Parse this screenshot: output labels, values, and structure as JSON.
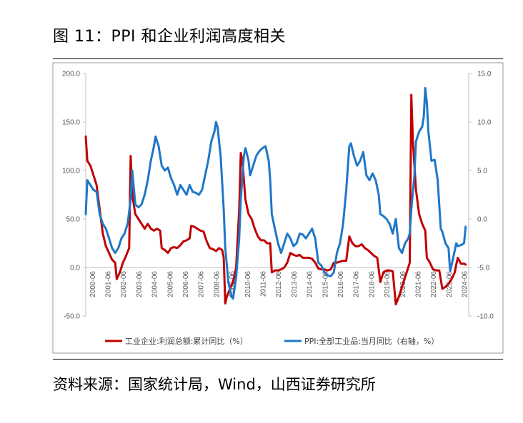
{
  "title": "图 11：PPI 和企业利润高度相关",
  "source": "资料来源：国家统计局，Wind，山西证券研究所",
  "chart_data": {
    "type": "line",
    "left_axis": {
      "min": -50,
      "max": 200,
      "ticks": [
        "200.0",
        "150.0",
        "100.0",
        "50.0",
        "0.0",
        "-50.0"
      ],
      "tick_values": [
        200,
        150,
        100,
        50,
        0,
        -50
      ]
    },
    "right_axis": {
      "min": -10,
      "max": 15,
      "ticks": [
        "15.0",
        "10.0",
        "5.0",
        "0.0",
        "-5.0",
        "-10.0"
      ],
      "tick_values": [
        15,
        10,
        5,
        0,
        -5,
        -10
      ]
    },
    "x_ticks": [
      "2000-06",
      "2001-06",
      "2002-06",
      "2003-06",
      "2004-06",
      "2005-06",
      "2006-06",
      "2007-06",
      "2008-06",
      "2009-06",
      "2010-06",
      "2011-06",
      "2012-06",
      "2013-06",
      "2014-06",
      "2015-06",
      "2016-06",
      "2017-06",
      "2018-06",
      "2019-06",
      "2020-06",
      "2021-06",
      "2022-06",
      "2023-06",
      "2024-06"
    ],
    "x_start": 2000.0,
    "x_end": 2024.7,
    "legend_position": "bottom",
    "series": [
      {
        "name": "工业企业:利润总额:累计同比（%）",
        "axis": "left",
        "color": "#C00000",
        "points": [
          [
            2000.0,
            135
          ],
          [
            2000.1,
            110
          ],
          [
            2000.3,
            105
          ],
          [
            2000.5,
            95
          ],
          [
            2000.7,
            85
          ],
          [
            2000.9,
            60
          ],
          [
            2001.1,
            35
          ],
          [
            2001.3,
            22
          ],
          [
            2001.5,
            15
          ],
          [
            2001.7,
            8
          ],
          [
            2001.9,
            5
          ],
          [
            2002.0,
            -12
          ],
          [
            2002.2,
            -5
          ],
          [
            2002.4,
            5
          ],
          [
            2002.6,
            12
          ],
          [
            2002.8,
            20
          ],
          [
            2002.9,
            115
          ],
          [
            2003.0,
            75
          ],
          [
            2003.2,
            55
          ],
          [
            2003.4,
            50
          ],
          [
            2003.6,
            45
          ],
          [
            2003.8,
            40
          ],
          [
            2004.0,
            45
          ],
          [
            2004.2,
            40
          ],
          [
            2004.4,
            38
          ],
          [
            2004.6,
            40
          ],
          [
            2004.8,
            38
          ],
          [
            2004.9,
            20
          ],
          [
            2005.1,
            18
          ],
          [
            2005.3,
            15
          ],
          [
            2005.5,
            20
          ],
          [
            2005.7,
            21
          ],
          [
            2005.9,
            20
          ],
          [
            2006.1,
            23
          ],
          [
            2006.3,
            27
          ],
          [
            2006.5,
            28
          ],
          [
            2006.7,
            30
          ],
          [
            2006.8,
            43
          ],
          [
            2007.0,
            42
          ],
          [
            2007.2,
            40
          ],
          [
            2007.4,
            38
          ],
          [
            2007.6,
            37
          ],
          [
            2007.8,
            27
          ],
          [
            2008.0,
            20
          ],
          [
            2008.2,
            19
          ],
          [
            2008.4,
            17
          ],
          [
            2008.6,
            20
          ],
          [
            2008.8,
            18
          ],
          [
            2008.9,
            10
          ],
          [
            2009.0,
            -37
          ],
          [
            2009.1,
            -30
          ],
          [
            2009.3,
            -22
          ],
          [
            2009.5,
            -15
          ],
          [
            2009.7,
            0
          ],
          [
            2009.9,
            60
          ],
          [
            2010.0,
            118
          ],
          [
            2010.1,
            110
          ],
          [
            2010.3,
            70
          ],
          [
            2010.5,
            55
          ],
          [
            2010.7,
            50
          ],
          [
            2010.9,
            40
          ],
          [
            2011.1,
            32
          ],
          [
            2011.3,
            28
          ],
          [
            2011.5,
            28
          ],
          [
            2011.7,
            25
          ],
          [
            2011.9,
            25
          ],
          [
            2012.0,
            -5
          ],
          [
            2012.2,
            -3
          ],
          [
            2012.4,
            -3
          ],
          [
            2012.6,
            -2
          ],
          [
            2012.8,
            0
          ],
          [
            2013.0,
            5
          ],
          [
            2013.2,
            15
          ],
          [
            2013.4,
            13
          ],
          [
            2013.6,
            12
          ],
          [
            2013.8,
            13
          ],
          [
            2014.0,
            10
          ],
          [
            2014.2,
            10
          ],
          [
            2014.4,
            10
          ],
          [
            2014.6,
            9
          ],
          [
            2014.8,
            5
          ],
          [
            2015.0,
            -1
          ],
          [
            2015.2,
            -2
          ],
          [
            2015.4,
            -2
          ],
          [
            2015.6,
            -3
          ],
          [
            2015.8,
            -2
          ],
          [
            2016.0,
            5
          ],
          [
            2016.2,
            5
          ],
          [
            2016.4,
            6
          ],
          [
            2016.6,
            7
          ],
          [
            2016.8,
            7
          ],
          [
            2017.0,
            32
          ],
          [
            2017.2,
            25
          ],
          [
            2017.4,
            22
          ],
          [
            2017.6,
            22
          ],
          [
            2017.8,
            24
          ],
          [
            2018.0,
            20
          ],
          [
            2018.2,
            18
          ],
          [
            2018.4,
            15
          ],
          [
            2018.6,
            12
          ],
          [
            2018.8,
            10
          ],
          [
            2019.0,
            -15
          ],
          [
            2019.2,
            -5
          ],
          [
            2019.4,
            -3
          ],
          [
            2019.6,
            -3
          ],
          [
            2019.8,
            -4
          ],
          [
            2020.0,
            -38
          ],
          [
            2020.2,
            -30
          ],
          [
            2020.4,
            -20
          ],
          [
            2020.6,
            -10
          ],
          [
            2020.8,
            0
          ],
          [
            2020.9,
            5
          ],
          [
            2021.0,
            178
          ],
          [
            2021.1,
            130
          ],
          [
            2021.3,
            80
          ],
          [
            2021.5,
            55
          ],
          [
            2021.7,
            45
          ],
          [
            2021.9,
            38
          ],
          [
            2022.0,
            10
          ],
          [
            2022.2,
            5
          ],
          [
            2022.4,
            -2
          ],
          [
            2022.6,
            -3
          ],
          [
            2022.8,
            -3
          ],
          [
            2023.0,
            -22
          ],
          [
            2023.2,
            -20
          ],
          [
            2023.4,
            -17
          ],
          [
            2023.6,
            -12
          ],
          [
            2023.8,
            -5
          ],
          [
            2023.9,
            3
          ],
          [
            2024.0,
            10
          ],
          [
            2024.2,
            4
          ],
          [
            2024.4,
            4
          ],
          [
            2024.5,
            3
          ]
        ]
      },
      {
        "name": "PPI:全部工业品:当月同比（右轴，%）",
        "axis": "right",
        "color": "#1F77C8",
        "points": [
          [
            2000.0,
            0.5
          ],
          [
            2000.1,
            4.0
          ],
          [
            2000.3,
            3.5
          ],
          [
            2000.5,
            3.0
          ],
          [
            2000.7,
            2.8
          ],
          [
            2000.9,
            0.5
          ],
          [
            2001.1,
            -0.5
          ],
          [
            2001.3,
            -1.0
          ],
          [
            2001.5,
            -2.0
          ],
          [
            2001.7,
            -3.0
          ],
          [
            2001.9,
            -3.5
          ],
          [
            2002.1,
            -3.0
          ],
          [
            2002.3,
            -2.0
          ],
          [
            2002.5,
            -1.5
          ],
          [
            2002.7,
            -0.5
          ],
          [
            2002.9,
            2.0
          ],
          [
            2003.0,
            5.0
          ],
          [
            2003.2,
            1.5
          ],
          [
            2003.4,
            1.2
          ],
          [
            2003.6,
            1.5
          ],
          [
            2003.8,
            2.5
          ],
          [
            2004.0,
            4.0
          ],
          [
            2004.2,
            6.0
          ],
          [
            2004.4,
            7.5
          ],
          [
            2004.5,
            8.5
          ],
          [
            2004.7,
            7.5
          ],
          [
            2004.9,
            5.5
          ],
          [
            2005.1,
            5.0
          ],
          [
            2005.3,
            5.3
          ],
          [
            2005.5,
            4.2
          ],
          [
            2005.7,
            3.5
          ],
          [
            2005.9,
            2.5
          ],
          [
            2006.1,
            3.5
          ],
          [
            2006.3,
            3.0
          ],
          [
            2006.5,
            2.5
          ],
          [
            2006.7,
            3.5
          ],
          [
            2006.9,
            2.8
          ],
          [
            2007.1,
            2.7
          ],
          [
            2007.3,
            2.5
          ],
          [
            2007.5,
            3.0
          ],
          [
            2007.7,
            4.5
          ],
          [
            2007.9,
            6.0
          ],
          [
            2008.1,
            8.0
          ],
          [
            2008.3,
            9.0
          ],
          [
            2008.4,
            10.0
          ],
          [
            2008.5,
            9.5
          ],
          [
            2008.7,
            6.5
          ],
          [
            2008.9,
            1.0
          ],
          [
            2009.0,
            -3.0
          ],
          [
            2009.2,
            -6.5
          ],
          [
            2009.4,
            -8.0
          ],
          [
            2009.5,
            -8.2
          ],
          [
            2009.7,
            -6.0
          ],
          [
            2009.9,
            -2.0
          ],
          [
            2010.0,
            2.0
          ],
          [
            2010.2,
            6.5
          ],
          [
            2010.3,
            7.3
          ],
          [
            2010.5,
            6.0
          ],
          [
            2010.6,
            4.5
          ],
          [
            2010.8,
            5.5
          ],
          [
            2011.0,
            6.5
          ],
          [
            2011.2,
            7.0
          ],
          [
            2011.4,
            7.3
          ],
          [
            2011.6,
            7.5
          ],
          [
            2011.8,
            6.0
          ],
          [
            2011.9,
            4.0
          ],
          [
            2012.0,
            0.5
          ],
          [
            2012.2,
            -1.0
          ],
          [
            2012.4,
            -2.5
          ],
          [
            2012.6,
            -3.5
          ],
          [
            2012.8,
            -2.5
          ],
          [
            2013.0,
            -1.5
          ],
          [
            2013.2,
            -2.0
          ],
          [
            2013.4,
            -2.8
          ],
          [
            2013.6,
            -2.5
          ],
          [
            2013.8,
            -1.5
          ],
          [
            2014.0,
            -1.6
          ],
          [
            2014.2,
            -2.0
          ],
          [
            2014.4,
            -1.5
          ],
          [
            2014.6,
            -1.0
          ],
          [
            2014.8,
            -2.0
          ],
          [
            2015.0,
            -4.5
          ],
          [
            2015.2,
            -4.8
          ],
          [
            2015.4,
            -5.5
          ],
          [
            2015.6,
            -5.8
          ],
          [
            2015.8,
            -5.9
          ],
          [
            2016.0,
            -5.5
          ],
          [
            2016.2,
            -3.5
          ],
          [
            2016.4,
            -2.5
          ],
          [
            2016.6,
            -0.5
          ],
          [
            2016.8,
            3.0
          ],
          [
            2017.0,
            7.5
          ],
          [
            2017.1,
            7.8
          ],
          [
            2017.3,
            6.5
          ],
          [
            2017.5,
            5.5
          ],
          [
            2017.7,
            6.0
          ],
          [
            2017.9,
            6.9
          ],
          [
            2018.1,
            4.5
          ],
          [
            2018.3,
            4.0
          ],
          [
            2018.5,
            4.7
          ],
          [
            2018.7,
            4.0
          ],
          [
            2018.9,
            2.5
          ],
          [
            2019.0,
            0.5
          ],
          [
            2019.2,
            0.3
          ],
          [
            2019.4,
            0.0
          ],
          [
            2019.6,
            -0.5
          ],
          [
            2019.8,
            -1.5
          ],
          [
            2020.0,
            0.0
          ],
          [
            2020.2,
            -3.0
          ],
          [
            2020.4,
            -3.5
          ],
          [
            2020.6,
            -2.5
          ],
          [
            2020.8,
            -2.0
          ],
          [
            2020.9,
            -1.5
          ],
          [
            2021.0,
            1.0
          ],
          [
            2021.2,
            4.5
          ],
          [
            2021.3,
            8.0
          ],
          [
            2021.5,
            9.0
          ],
          [
            2021.7,
            9.5
          ],
          [
            2021.8,
            10.5
          ],
          [
            2021.9,
            13.5
          ],
          [
            2022.0,
            12.0
          ],
          [
            2022.1,
            9.0
          ],
          [
            2022.3,
            6.0
          ],
          [
            2022.5,
            6.1
          ],
          [
            2022.7,
            4.0
          ],
          [
            2022.9,
            -1.0
          ],
          [
            2023.0,
            -1.3
          ],
          [
            2023.2,
            -2.5
          ],
          [
            2023.4,
            -3.0
          ],
          [
            2023.5,
            -5.4
          ],
          [
            2023.7,
            -4.0
          ],
          [
            2023.9,
            -2.5
          ],
          [
            2024.0,
            -2.8
          ],
          [
            2024.2,
            -2.7
          ],
          [
            2024.4,
            -2.5
          ],
          [
            2024.5,
            -0.8
          ]
        ]
      }
    ]
  }
}
